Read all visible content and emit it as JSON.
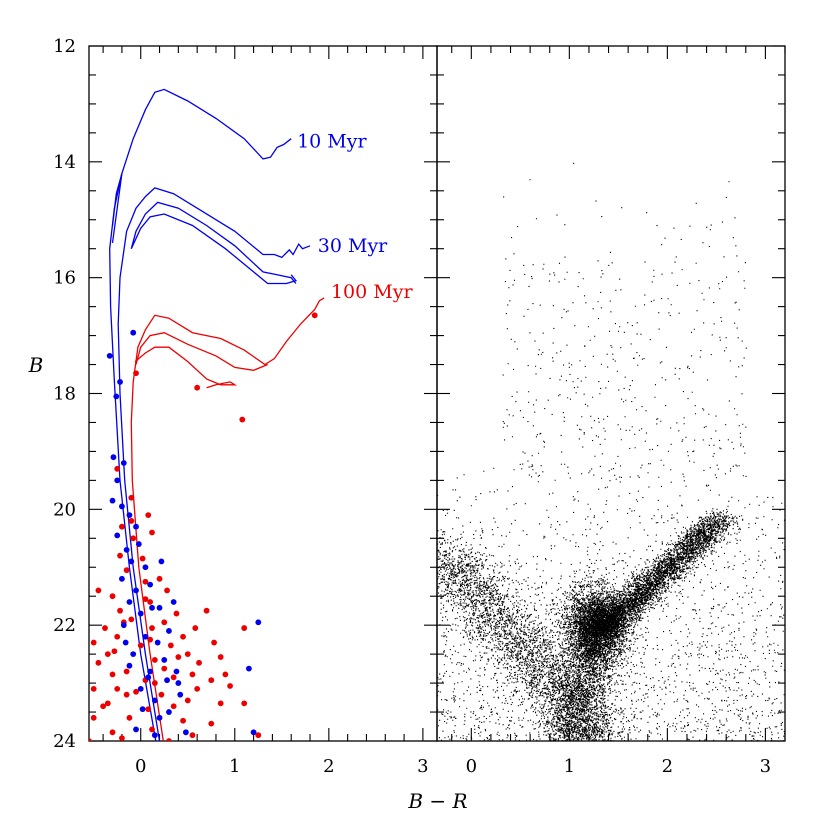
{
  "colors": {
    "young": "#0000ee",
    "old": "#ee0000",
    "field": "#000000",
    "axis": "#000000"
  },
  "chart_data": {
    "type": "scatter",
    "xlabel": "B − R",
    "ylabel": "B",
    "ylim": [
      24,
      12
    ],
    "y_inverted": true,
    "yticks": [
      "12",
      "14",
      "16",
      "18",
      "20",
      "22",
      "24"
    ],
    "panels": [
      {
        "name": "left",
        "xlim": [
          -0.55,
          3.15
        ],
        "xticks": [
          "0",
          "1",
          "2",
          "3"
        ]
      },
      {
        "name": "right",
        "xlim": [
          -0.35,
          3.2
        ],
        "xticks": [
          "0",
          "1",
          "2",
          "3"
        ]
      }
    ],
    "isochrones": [
      {
        "label": "10 Myr",
        "color": "#0000ee",
        "points": [
          [
            0.16,
            24
          ],
          [
            0.0,
            22.5
          ],
          [
            -0.12,
            21
          ],
          [
            -0.22,
            19.5
          ],
          [
            -0.28,
            17.8
          ],
          [
            -0.32,
            16.5
          ],
          [
            -0.33,
            15.5
          ],
          [
            -0.28,
            14.8
          ],
          [
            -0.2,
            14.2
          ],
          [
            -0.08,
            13.6
          ],
          [
            0.05,
            13.1
          ],
          [
            0.15,
            12.8
          ],
          [
            0.25,
            12.75
          ],
          [
            0.5,
            12.95
          ],
          [
            0.8,
            13.25
          ],
          [
            1.1,
            13.6
          ],
          [
            1.3,
            13.95
          ],
          [
            1.38,
            13.92
          ],
          [
            1.45,
            13.75
          ],
          [
            1.52,
            13.7
          ],
          [
            1.6,
            13.6
          ]
        ]
      },
      {
        "label": "30 Myr",
        "color": "#0000ee",
        "points": [
          [
            0.2,
            24
          ],
          [
            0.05,
            22.5
          ],
          [
            -0.08,
            21
          ],
          [
            -0.17,
            19.5
          ],
          [
            -0.22,
            18
          ],
          [
            -0.24,
            16.8
          ],
          [
            -0.22,
            16
          ],
          [
            -0.15,
            15.2
          ],
          [
            -0.05,
            14.8
          ],
          [
            0.05,
            14.6
          ],
          [
            0.15,
            14.45
          ],
          [
            0.35,
            14.55
          ],
          [
            0.65,
            14.85
          ],
          [
            1.0,
            15.2
          ],
          [
            1.3,
            15.6
          ],
          [
            1.42,
            15.6
          ],
          [
            1.5,
            15.65
          ],
          [
            1.58,
            15.52
          ],
          [
            1.62,
            15.6
          ],
          [
            1.68,
            15.42
          ],
          [
            1.72,
            15.5
          ],
          [
            1.8,
            15.45
          ]
        ]
      },
      {
        "label": "100 Myr",
        "color": "#ee0000",
        "points": [
          [
            0.24,
            24
          ],
          [
            0.1,
            22.5
          ],
          [
            -0.02,
            21
          ],
          [
            -0.09,
            19.5
          ],
          [
            -0.1,
            18.5
          ],
          [
            -0.08,
            17.8
          ],
          [
            -0.03,
            17.2
          ],
          [
            0.05,
            16.9
          ],
          [
            0.15,
            16.65
          ],
          [
            0.3,
            16.7
          ],
          [
            0.55,
            16.95
          ],
          [
            0.85,
            17.05
          ],
          [
            1.1,
            17.25
          ],
          [
            1.32,
            17.5
          ],
          [
            1.42,
            17.4
          ],
          [
            1.55,
            17.1
          ],
          [
            1.7,
            16.8
          ],
          [
            1.85,
            16.55
          ],
          [
            1.9,
            16.4
          ],
          [
            1.95,
            16.35
          ]
        ]
      }
    ],
    "isochrone_extra_tracks": [
      {
        "color": "#0000ee",
        "points": [
          [
            -0.3,
            15.1
          ],
          [
            -0.26,
            14.55
          ],
          [
            -0.2,
            14.2
          ],
          [
            -0.25,
            14.8
          ],
          [
            -0.3,
            15.4
          ]
        ]
      },
      {
        "color": "#0000ee",
        "points": [
          [
            -0.1,
            15.5
          ],
          [
            -0.05,
            15.2
          ],
          [
            0.05,
            14.9
          ],
          [
            0.18,
            14.7
          ],
          [
            0.4,
            14.8
          ],
          [
            0.7,
            15.1
          ],
          [
            1.0,
            15.45
          ],
          [
            1.2,
            15.75
          ],
          [
            1.3,
            15.9
          ],
          [
            1.45,
            15.95
          ],
          [
            1.6,
            16.0
          ],
          [
            1.65,
            16.1
          ]
        ]
      },
      {
        "color": "#0000ee",
        "points": [
          [
            -0.1,
            15.5
          ],
          [
            0.0,
            15.15
          ],
          [
            0.1,
            14.95
          ],
          [
            0.25,
            14.9
          ],
          [
            0.55,
            15.1
          ],
          [
            0.9,
            15.5
          ],
          [
            1.2,
            15.9
          ],
          [
            1.35,
            16.1
          ],
          [
            1.55,
            16.1
          ],
          [
            1.65,
            16.05
          ],
          [
            1.6,
            15.95
          ]
        ]
      },
      {
        "color": "#ee0000",
        "points": [
          [
            -0.05,
            17.5
          ],
          [
            0.0,
            17.2
          ],
          [
            0.1,
            17.0
          ],
          [
            0.25,
            16.95
          ],
          [
            0.5,
            17.15
          ],
          [
            0.8,
            17.35
          ],
          [
            1.0,
            17.55
          ],
          [
            1.2,
            17.6
          ],
          [
            1.35,
            17.5
          ]
        ]
      },
      {
        "color": "#ee0000",
        "points": [
          [
            -0.06,
            17.45
          ],
          [
            0.05,
            17.3
          ],
          [
            0.15,
            17.2
          ],
          [
            0.3,
            17.2
          ],
          [
            0.5,
            17.45
          ],
          [
            0.7,
            17.75
          ],
          [
            0.85,
            17.85
          ],
          [
            1.0,
            17.85
          ],
          [
            0.95,
            17.8
          ],
          [
            0.8,
            17.85
          ],
          [
            0.7,
            17.9
          ]
        ]
      }
    ],
    "cluster_stars": {
      "blue": [
        [
          -0.33,
          17.35
        ],
        [
          -0.08,
          16.95
        ],
        [
          -0.22,
          17.8
        ],
        [
          -0.26,
          18.05
        ],
        [
          -0.29,
          19.1
        ],
        [
          -0.18,
          19.2
        ],
        [
          -0.25,
          19.5
        ],
        [
          -0.3,
          19.85
        ],
        [
          -0.2,
          19.95
        ],
        [
          -0.12,
          20.1
        ],
        [
          -0.05,
          20.3
        ],
        [
          -0.25,
          20.45
        ],
        [
          -0.15,
          20.7
        ],
        [
          -0.1,
          20.9
        ],
        [
          -0.2,
          21.2
        ],
        [
          -0.05,
          21.4
        ],
        [
          -0.12,
          21.6
        ],
        [
          0.0,
          21.8
        ],
        [
          -0.18,
          22.0
        ],
        [
          0.05,
          22.2
        ],
        [
          -0.08,
          22.5
        ],
        [
          0.1,
          22.8
        ],
        [
          0.0,
          23.1
        ],
        [
          0.15,
          23.3
        ],
        [
          0.2,
          23.6
        ],
        [
          -0.02,
          20.6
        ],
        [
          0.05,
          21.0
        ],
        [
          0.12,
          21.7
        ],
        [
          0.18,
          22.3
        ],
        [
          0.25,
          22.6
        ],
        [
          0.3,
          22.1
        ],
        [
          0.38,
          22.8
        ],
        [
          0.42,
          23.2
        ],
        [
          0.48,
          23.85
        ],
        [
          0.2,
          21.7
        ],
        [
          1.25,
          21.95
        ],
        [
          1.15,
          22.75
        ],
        [
          1.2,
          23.85
        ],
        [
          -0.12,
          22.7
        ],
        [
          0.3,
          23.5
        ],
        [
          -0.05,
          23.8
        ],
        [
          0.35,
          21.6
        ],
        [
          0.22,
          20.9
        ],
        [
          0.08,
          22.9
        ],
        [
          -0.16,
          22.3
        ],
        [
          0.02,
          23.45
        ],
        [
          0.15,
          23.9
        ],
        [
          0.28,
          22.95
        ],
        [
          0.4,
          23.0
        ],
        [
          0.1,
          21.3
        ]
      ],
      "red": [
        [
          0.6,
          17.9
        ],
        [
          1.85,
          16.65
        ],
        [
          1.08,
          18.45
        ],
        [
          -0.05,
          17.65
        ],
        [
          -0.25,
          19.3
        ],
        [
          -0.1,
          19.8
        ],
        [
          0.08,
          20.1
        ],
        [
          -0.2,
          20.3
        ],
        [
          -0.08,
          20.5
        ],
        [
          0.02,
          20.85
        ],
        [
          -0.15,
          21.05
        ],
        [
          -0.3,
          21.5
        ],
        [
          -0.22,
          21.75
        ],
        [
          0.05,
          21.55
        ],
        [
          0.28,
          21.4
        ],
        [
          0.38,
          21.8
        ],
        [
          -0.38,
          22.05
        ],
        [
          -0.25,
          22.2
        ],
        [
          0.12,
          22.05
        ],
        [
          0.32,
          22.35
        ],
        [
          0.5,
          22.5
        ],
        [
          0.58,
          22.05
        ],
        [
          0.78,
          22.3
        ],
        [
          -0.45,
          22.65
        ],
        [
          -0.3,
          22.85
        ],
        [
          0.05,
          22.95
        ],
        [
          0.25,
          22.75
        ],
        [
          0.55,
          22.85
        ],
        [
          0.75,
          22.95
        ],
        [
          0.9,
          22.85
        ],
        [
          -0.5,
          23.1
        ],
        [
          -0.35,
          23.35
        ],
        [
          -0.15,
          23.2
        ],
        [
          0.08,
          23.45
        ],
        [
          0.35,
          23.4
        ],
        [
          0.6,
          23.1
        ],
        [
          0.85,
          23.35
        ],
        [
          1.1,
          23.35
        ],
        [
          1.25,
          23.9
        ],
        [
          -0.5,
          23.6
        ],
        [
          -0.3,
          23.85
        ],
        [
          0.12,
          23.8
        ],
        [
          0.45,
          23.65
        ],
        [
          0.75,
          23.7
        ],
        [
          -0.55,
          24.0
        ],
        [
          -0.2,
          23.95
        ],
        [
          0.3,
          24.0
        ],
        [
          1.1,
          22.05
        ],
        [
          0.95,
          23.05
        ],
        [
          0.2,
          21.2
        ],
        [
          -0.45,
          21.4
        ],
        [
          -0.35,
          22.5
        ],
        [
          -0.15,
          22.8
        ],
        [
          0.15,
          22.6
        ],
        [
          0.4,
          22.55
        ],
        [
          0.62,
          22.65
        ],
        [
          0.85,
          22.55
        ],
        [
          -0.05,
          23.15
        ],
        [
          0.22,
          23.2
        ],
        [
          0.5,
          23.3
        ],
        [
          -0.4,
          23.4
        ],
        [
          -0.12,
          23.6
        ],
        [
          0.05,
          21.25
        ],
        [
          -0.18,
          21.95
        ],
        [
          0.0,
          22.35
        ],
        [
          0.25,
          21.95
        ],
        [
          -0.28,
          22.45
        ],
        [
          -0.1,
          21.9
        ],
        [
          0.1,
          22.25
        ],
        [
          0.35,
          22.9
        ],
        [
          -0.25,
          23.1
        ],
        [
          0.15,
          23.0
        ],
        [
          0.45,
          22.2
        ],
        [
          0.7,
          21.75
        ],
        [
          -0.5,
          22.3
        ],
        [
          0.55,
          23.9
        ],
        [
          -0.1,
          20.2
        ],
        [
          -0.22,
          20.8
        ],
        [
          0.12,
          20.4
        ],
        [
          0.1,
          21.6
        ]
      ]
    },
    "field_density_components": [
      {
        "name": "turnoff-clump",
        "center": [
          1.27,
          22.0
        ],
        "spread": [
          0.16,
          0.32
        ],
        "weight": 0.24
      },
      {
        "name": "red-giant-branch",
        "from": [
          1.3,
          22.1
        ],
        "to": [
          2.55,
          20.15
        ],
        "width": 0.1,
        "weight": 0.27
      },
      {
        "name": "blue-main-sequence",
        "from": [
          -0.3,
          20.7
        ],
        "to": [
          1.3,
          24.0
        ],
        "width": 0.2,
        "weight": 0.21
      },
      {
        "name": "lower-branch",
        "from": [
          1.25,
          22.3
        ],
        "to": [
          1.0,
          24.0
        ],
        "width": 0.15,
        "weight": 0.12
      },
      {
        "name": "diffuse-background",
        "xrange": [
          -0.35,
          3.2
        ],
        "yrange": [
          19.0,
          24.0
        ],
        "weight": 0.13
      },
      {
        "name": "bright-scatter",
        "xrange": [
          0.3,
          2.8
        ],
        "yrange": [
          14.0,
          19.5
        ],
        "weight": 0.03
      }
    ]
  }
}
